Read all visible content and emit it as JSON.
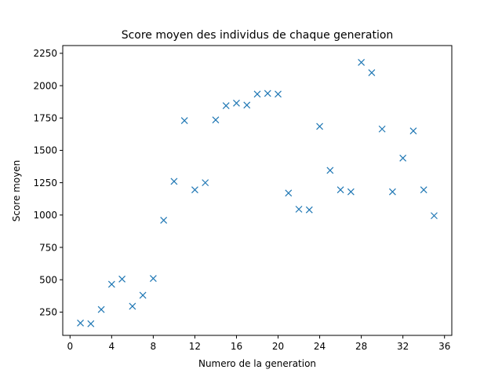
{
  "chart_data": {
    "type": "scatter",
    "title": "Score moyen des individus de chaque generation",
    "xlabel": "Numero de la generation",
    "ylabel": "Score moyen",
    "xlim": [
      -0.7,
      36.7
    ],
    "ylim": [
      70,
      2310
    ],
    "xticks": [
      0,
      4,
      8,
      12,
      16,
      20,
      24,
      28,
      32,
      36
    ],
    "yticks": [
      250,
      500,
      750,
      1000,
      1250,
      1500,
      1750,
      2000,
      2250
    ],
    "grid": false,
    "marker": "x",
    "color": "#1f77b4",
    "series": [
      {
        "x": [
          1,
          2,
          3,
          4,
          5,
          6,
          7,
          8,
          9,
          10,
          11,
          12,
          13,
          14,
          15,
          16,
          17,
          18,
          19,
          20,
          21,
          22,
          23,
          24,
          25,
          26,
          27,
          28,
          29,
          30,
          31,
          32,
          33,
          34,
          35
        ],
        "y": [
          165,
          160,
          270,
          465,
          505,
          295,
          380,
          510,
          960,
          1260,
          1730,
          1195,
          1250,
          1735,
          1845,
          1865,
          1850,
          1935,
          1940,
          1935,
          1170,
          1045,
          1040,
          1685,
          1345,
          1195,
          1180,
          2180,
          2100,
          1665,
          1180,
          1440,
          1650,
          1195,
          995
        ]
      }
    ]
  }
}
